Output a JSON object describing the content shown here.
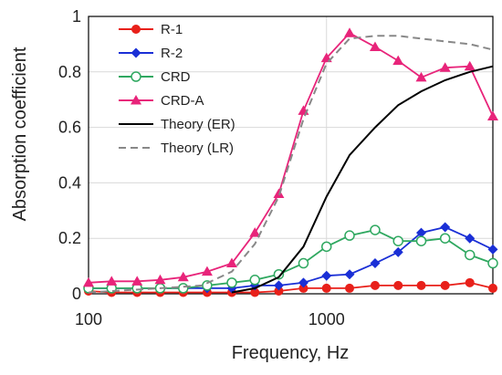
{
  "chart_data": {
    "type": "line",
    "xlabel": "Frequency, Hz",
    "ylabel": "Absorption coefficient",
    "xscale": "log",
    "xlim": [
      100,
      5000
    ],
    "ylim": [
      0,
      1
    ],
    "xticks": [
      "100",
      "1000"
    ],
    "yticks": [
      "0",
      "0.2",
      "0.4",
      "0.6",
      "0.8",
      "1"
    ],
    "grid": "major vertical and horizontal",
    "legend_position": "top-left",
    "series": [
      {
        "name": "R-1",
        "color": "#e8201a",
        "marker": "circle",
        "x": [
          100,
          125,
          160,
          200,
          250,
          315,
          400,
          500,
          630,
          800,
          1000,
          1250,
          1600,
          2000,
          2500,
          3150,
          4000,
          5000
        ],
        "y": [
          0.01,
          0.005,
          0.005,
          0.005,
          0.005,
          0.005,
          0.005,
          0.005,
          0.01,
          0.02,
          0.02,
          0.02,
          0.03,
          0.03,
          0.03,
          0.03,
          0.04,
          0.02
        ]
      },
      {
        "name": "R-2",
        "color": "#1a2fd6",
        "marker": "diamond",
        "x": [
          100,
          125,
          160,
          200,
          250,
          315,
          400,
          500,
          630,
          800,
          1000,
          1250,
          1600,
          2000,
          2500,
          3150,
          4000,
          5000
        ],
        "y": [
          0.02,
          0.02,
          0.02,
          0.02,
          0.02,
          0.02,
          0.02,
          0.03,
          0.03,
          0.04,
          0.065,
          0.07,
          0.11,
          0.15,
          0.22,
          0.24,
          0.2,
          0.16
        ]
      },
      {
        "name": "CRD",
        "color": "#2fa860",
        "marker": "circle-open",
        "x": [
          100,
          125,
          160,
          200,
          250,
          315,
          400,
          500,
          630,
          800,
          1000,
          1250,
          1600,
          2000,
          2500,
          3150,
          4000,
          5000
        ],
        "y": [
          0.02,
          0.02,
          0.02,
          0.02,
          0.02,
          0.03,
          0.04,
          0.05,
          0.07,
          0.11,
          0.17,
          0.21,
          0.23,
          0.19,
          0.19,
          0.2,
          0.14,
          0.11
        ]
      },
      {
        "name": "CRD-A",
        "color": "#e8247a",
        "marker": "triangle",
        "x": [
          100,
          125,
          160,
          200,
          250,
          315,
          400,
          500,
          630,
          800,
          1000,
          1250,
          1600,
          2000,
          2500,
          3150,
          4000,
          5000
        ],
        "y": [
          0.04,
          0.045,
          0.045,
          0.05,
          0.06,
          0.08,
          0.11,
          0.22,
          0.36,
          0.66,
          0.85,
          0.94,
          0.89,
          0.84,
          0.78,
          0.815,
          0.82,
          0.64
        ]
      },
      {
        "name": "Theory (ER)",
        "color": "#000000",
        "marker": "none",
        "dash": "solid",
        "x": [
          400,
          500,
          630,
          800,
          1000,
          1250,
          1600,
          2000,
          2500,
          3150,
          4000,
          5000
        ],
        "y": [
          0.005,
          0.02,
          0.06,
          0.17,
          0.35,
          0.5,
          0.6,
          0.68,
          0.73,
          0.77,
          0.8,
          0.82
        ]
      },
      {
        "name": "Theory (LR)",
        "color": "#888888",
        "marker": "none",
        "dash": "dashed",
        "x": [
          100,
          200,
          300,
          400,
          500,
          630,
          800,
          1000,
          1250,
          1600,
          2000,
          2500,
          3150,
          4000,
          5000
        ],
        "y": [
          0.005,
          0.02,
          0.03,
          0.08,
          0.18,
          0.35,
          0.63,
          0.83,
          0.92,
          0.93,
          0.93,
          0.92,
          0.91,
          0.9,
          0.88
        ]
      }
    ]
  }
}
